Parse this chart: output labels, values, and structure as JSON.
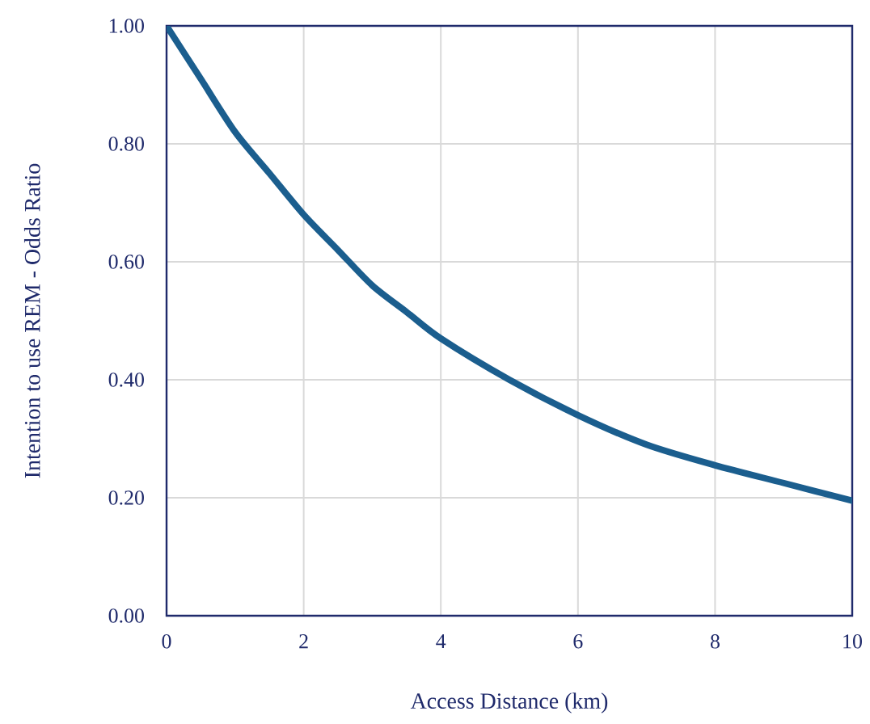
{
  "chart_data": {
    "type": "line",
    "xlabel": "Access Distance (km)",
    "ylabel": "Intention to use REM - Odds Ratio",
    "x": [
      0,
      0.5,
      1,
      1.5,
      2,
      2.5,
      3,
      3.5,
      4,
      5,
      6,
      7,
      8,
      9,
      10
    ],
    "series": [
      {
        "color": "#1b5e8e",
        "values": [
          1.0,
          0.91,
          0.82,
          0.75,
          0.68,
          0.62,
          0.56,
          0.515,
          0.47,
          0.4,
          0.34,
          0.29,
          0.255,
          0.225,
          0.195
        ]
      }
    ],
    "xlim": [
      0,
      10
    ],
    "ylim": [
      0,
      1
    ],
    "xticks": [
      0,
      2,
      4,
      6,
      8,
      10
    ],
    "yticks": [
      {
        "value": 0,
        "label": "0.00"
      },
      {
        "value": 0.2,
        "label": "0.20"
      },
      {
        "value": 0.4,
        "label": "0.40"
      },
      {
        "value": 0.6,
        "label": "0.60"
      },
      {
        "value": 0.8,
        "label": "0.80"
      },
      {
        "value": 1,
        "label": "1.00"
      }
    ],
    "grid": true,
    "marker": "none",
    "line_style": "solid"
  }
}
